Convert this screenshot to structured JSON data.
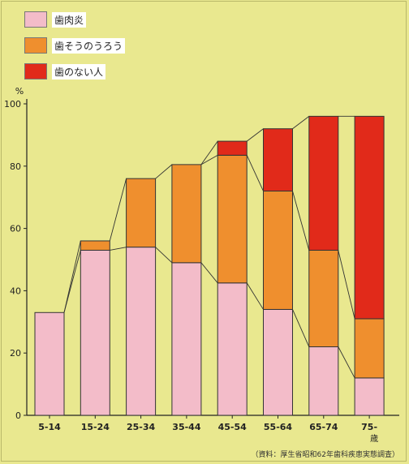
{
  "chart_data": {
    "type": "bar",
    "stacked": true,
    "categories": [
      "5-14",
      "15-24",
      "25-34",
      "35-44",
      "45-54",
      "55-64",
      "65-74",
      "75-"
    ],
    "category_suffix": "歳",
    "series": [
      {
        "name": "歯肉炎",
        "color": "#f3bcc9",
        "values": [
          33,
          53,
          54,
          49,
          42.5,
          34,
          22,
          12
        ]
      },
      {
        "name": "歯そうのうろう",
        "color": "#ef8f2e",
        "values": [
          0,
          3,
          22,
          31.5,
          41,
          38,
          31,
          19
        ]
      },
      {
        "name": "歯のない人",
        "color": "#e12a1a",
        "values": [
          0,
          0,
          0,
          0,
          4.5,
          20,
          43,
          65
        ]
      }
    ],
    "yunit": "%",
    "ylim": [
      0,
      100
    ],
    "yticks": [
      0,
      20,
      40,
      60,
      80,
      100
    ],
    "grid": false,
    "legend_position": "top-left",
    "source": "（資料：厚生省昭和62年歯科疾患実態調査）"
  }
}
